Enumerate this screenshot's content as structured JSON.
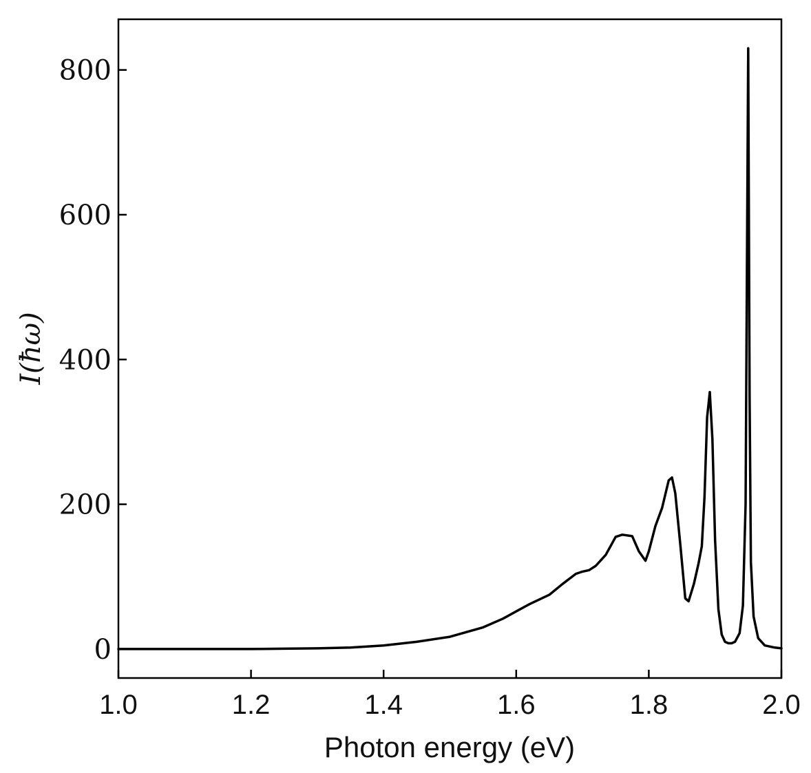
{
  "chart_data": {
    "type": "line",
    "title": "",
    "xlabel": "Photon energy (eV)",
    "ylabel": "I(ħω)",
    "xlim": [
      1.0,
      2.0
    ],
    "ylim": [
      -40,
      870
    ],
    "xticks": [
      1.0,
      1.2,
      1.4,
      1.6,
      1.8,
      2.0
    ],
    "xtick_labels": [
      "1.0",
      "1.2",
      "1.4",
      "1.6",
      "1.8",
      "2.0"
    ],
    "yticks": [
      0,
      200,
      400,
      600,
      800
    ],
    "ytick_labels": [
      "0",
      "200",
      "400",
      "600",
      "800"
    ],
    "grid": false,
    "line_color": "#000000",
    "series": [
      {
        "x": [
          1.0,
          1.1,
          1.2,
          1.25,
          1.3,
          1.35,
          1.4,
          1.45,
          1.5,
          1.55,
          1.58,
          1.6,
          1.62,
          1.65,
          1.67,
          1.69,
          1.7,
          1.71,
          1.72,
          1.735,
          1.75,
          1.76,
          1.775,
          1.785,
          1.795,
          1.8,
          1.81,
          1.82,
          1.83,
          1.835,
          1.84,
          1.848,
          1.855,
          1.86,
          1.868,
          1.875,
          1.88,
          1.884,
          1.888,
          1.892,
          1.896,
          1.9,
          1.905,
          1.91,
          1.915,
          1.92,
          1.925,
          1.93,
          1.937,
          1.942,
          1.946,
          1.948,
          1.95,
          1.952,
          1.954,
          1.958,
          1.965,
          1.975,
          1.99,
          2.0
        ],
        "y": [
          0,
          0,
          0,
          0.5,
          1,
          2,
          5,
          10,
          17,
          30,
          42,
          52,
          62,
          75,
          90,
          104,
          107,
          109,
          115,
          130,
          155,
          158,
          156,
          135,
          122,
          135,
          170,
          195,
          233,
          237,
          215,
          140,
          70,
          66,
          90,
          118,
          142,
          210,
          320,
          355,
          290,
          150,
          55,
          20,
          10,
          8,
          8,
          10,
          22,
          60,
          200,
          520,
          830,
          350,
          120,
          45,
          15,
          5,
          2,
          1
        ]
      }
    ]
  }
}
